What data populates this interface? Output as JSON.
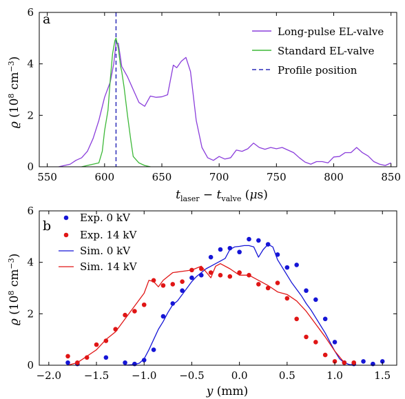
{
  "chart_data": [
    {
      "type": "line",
      "panel_label": "a",
      "xlabel": "t_laser − t_valve (μs)",
      "ylabel": "ϱ (10⁸ cm⁻³)",
      "xlim": [
        543,
        855
      ],
      "ylim": [
        0,
        6
      ],
      "xticks": [
        550,
        600,
        650,
        700,
        750,
        800,
        850
      ],
      "yticks": [
        0,
        2,
        4,
        6
      ],
      "legend_position": "top-right",
      "profile_position": 610,
      "series": [
        {
          "name": "Long-pulse EL-valve",
          "color": "#8a3ddb",
          "x": [
            560,
            570,
            575,
            580,
            585,
            590,
            595,
            600,
            605,
            608,
            610,
            612,
            615,
            620,
            625,
            630,
            635,
            640,
            645,
            650,
            655,
            660,
            663,
            667,
            671,
            675,
            680,
            685,
            690,
            695,
            700,
            705,
            710,
            715,
            720,
            725,
            730,
            735,
            740,
            745,
            750,
            755,
            760,
            765,
            770,
            775,
            780,
            785,
            790,
            795,
            800,
            805,
            810,
            815,
            820,
            825,
            830,
            835,
            840,
            845,
            850
          ],
          "y": [
            0.0,
            0.1,
            0.25,
            0.35,
            0.6,
            1.1,
            1.8,
            2.7,
            3.3,
            4.0,
            4.8,
            4.8,
            3.9,
            3.5,
            3.0,
            2.5,
            2.35,
            2.75,
            2.7,
            2.72,
            2.8,
            3.95,
            3.85,
            4.1,
            4.25,
            3.7,
            1.8,
            0.75,
            0.35,
            0.25,
            0.4,
            0.3,
            0.35,
            0.65,
            0.6,
            0.7,
            0.92,
            0.75,
            0.68,
            0.75,
            0.7,
            0.75,
            0.65,
            0.55,
            0.35,
            0.18,
            0.1,
            0.2,
            0.2,
            0.15,
            0.38,
            0.4,
            0.55,
            0.55,
            0.75,
            0.55,
            0.42,
            0.2,
            0.1,
            0.05,
            0.15
          ]
        },
        {
          "name": "Standard EL-valve",
          "color": "#3cb837",
          "x": [
            580,
            585,
            590,
            595,
            598,
            600,
            603,
            605,
            607,
            609,
            610,
            612,
            614,
            615,
            617,
            620,
            623,
            625,
            630,
            635,
            640
          ],
          "y": [
            0.0,
            0.05,
            0.1,
            0.15,
            0.6,
            1.4,
            2.2,
            3.4,
            4.4,
            4.9,
            5.0,
            4.6,
            3.9,
            3.7,
            3.1,
            2.0,
            1.0,
            0.4,
            0.15,
            0.05,
            0.0
          ]
        }
      ],
      "legend": [
        "Long-pulse EL-valve",
        "Standard EL-valve",
        "Profile position"
      ]
    },
    {
      "type": "scatter",
      "panel_label": "b",
      "xlabel": "y (mm)",
      "ylabel": "ϱ (10⁸ cm⁻³)",
      "xlim": [
        -2.1,
        1.65
      ],
      "ylim": [
        0,
        6
      ],
      "xticks": [
        -2.0,
        -1.5,
        -1.0,
        -0.5,
        0.0,
        0.5,
        1.0,
        1.5
      ],
      "yticks": [
        0,
        2,
        4,
        6
      ],
      "legend_position": "top-left",
      "series": [
        {
          "name": "Exp. 0 kV",
          "kind": "points",
          "color": "#1515d6",
          "x": [
            -1.8,
            -1.7,
            -1.4,
            -1.2,
            -1.1,
            -1.0,
            -0.9,
            -0.8,
            -0.7,
            -0.6,
            -0.5,
            -0.4,
            -0.3,
            -0.2,
            -0.1,
            0.0,
            0.1,
            0.2,
            0.3,
            0.4,
            0.5,
            0.6,
            0.7,
            0.8,
            0.9,
            1.0,
            1.1,
            1.2,
            1.3,
            1.4,
            1.5
          ],
          "y": [
            0.1,
            0.05,
            0.3,
            0.1,
            0.05,
            0.2,
            0.6,
            1.9,
            2.4,
            2.9,
            3.4,
            3.5,
            4.2,
            4.5,
            4.55,
            4.4,
            4.9,
            4.85,
            4.7,
            4.3,
            3.8,
            3.9,
            2.9,
            2.55,
            1.8,
            0.9,
            0.1,
            0.05,
            0.15,
            0.05,
            0.15
          ]
        },
        {
          "name": "Exp. 14 kV",
          "kind": "points",
          "color": "#e01515",
          "x": [
            -1.8,
            -1.7,
            -1.6,
            -1.5,
            -1.4,
            -1.3,
            -1.2,
            -1.1,
            -1.0,
            -0.9,
            -0.8,
            -0.7,
            -0.6,
            -0.5,
            -0.4,
            -0.3,
            -0.2,
            -0.1,
            0.0,
            0.1,
            0.2,
            0.3,
            0.4,
            0.5,
            0.6,
            0.7,
            0.8,
            0.9,
            1.0,
            1.1,
            1.2
          ],
          "y": [
            0.35,
            0.1,
            0.3,
            0.8,
            0.95,
            1.4,
            1.95,
            2.1,
            2.35,
            3.3,
            3.1,
            3.15,
            3.25,
            3.7,
            3.75,
            3.6,
            3.5,
            3.45,
            3.6,
            3.5,
            3.15,
            3.0,
            3.2,
            2.6,
            1.8,
            1.1,
            0.9,
            0.4,
            0.15,
            0.1,
            0.1
          ]
        },
        {
          "name": "Sim. 0 kV",
          "kind": "line",
          "color": "#1515d6",
          "x": [
            -1.2,
            -1.1,
            -1.05,
            -1.0,
            -0.95,
            -0.9,
            -0.85,
            -0.8,
            -0.75,
            -0.7,
            -0.65,
            -0.6,
            -0.55,
            -0.5,
            -0.45,
            -0.4,
            -0.35,
            -0.3,
            -0.25,
            -0.2,
            -0.15,
            -0.1,
            -0.05,
            0.0,
            0.05,
            0.1,
            0.15,
            0.2,
            0.25,
            0.3,
            0.35,
            0.4,
            0.45,
            0.5,
            0.55,
            0.6,
            0.65,
            0.7,
            0.75,
            0.8,
            0.85,
            0.9,
            0.95,
            1.0,
            1.05,
            1.1,
            1.15,
            1.2
          ],
          "y": [
            0.0,
            0.03,
            0.08,
            0.25,
            0.6,
            1.0,
            1.4,
            1.7,
            2.05,
            2.35,
            2.5,
            2.75,
            3.0,
            3.25,
            3.45,
            3.6,
            3.75,
            3.85,
            3.95,
            4.05,
            4.15,
            4.5,
            4.6,
            4.62,
            4.65,
            4.65,
            4.6,
            4.2,
            4.5,
            4.7,
            4.6,
            4.1,
            3.8,
            3.5,
            3.2,
            2.95,
            2.7,
            2.4,
            2.15,
            1.85,
            1.55,
            1.25,
            0.9,
            0.55,
            0.25,
            0.1,
            0.03,
            0.0
          ]
        },
        {
          "name": "Sim. 14 kV",
          "kind": "line",
          "color": "#e01515",
          "x": [
            -1.8,
            -1.7,
            -1.6,
            -1.5,
            -1.4,
            -1.3,
            -1.2,
            -1.1,
            -1.0,
            -0.95,
            -0.9,
            -0.85,
            -0.8,
            -0.7,
            -0.6,
            -0.5,
            -0.4,
            -0.3,
            -0.25,
            -0.2,
            -0.1,
            0.0,
            0.1,
            0.2,
            0.3,
            0.4,
            0.5,
            0.6,
            0.7,
            0.8,
            0.9,
            1.0,
            1.1
          ],
          "y": [
            0.0,
            0.1,
            0.35,
            0.6,
            1.0,
            1.3,
            1.8,
            2.3,
            2.8,
            3.3,
            3.25,
            3.05,
            3.3,
            3.6,
            3.65,
            3.7,
            3.85,
            3.4,
            3.85,
            3.95,
            3.75,
            3.5,
            3.5,
            3.3,
            3.1,
            2.85,
            2.75,
            2.5,
            2.1,
            1.6,
            1.1,
            0.55,
            0.1
          ]
        }
      ],
      "legend": [
        "Exp. 0 kV",
        "Exp. 14 kV",
        "Sim. 0 kV",
        "Sim. 14 kV"
      ]
    }
  ]
}
